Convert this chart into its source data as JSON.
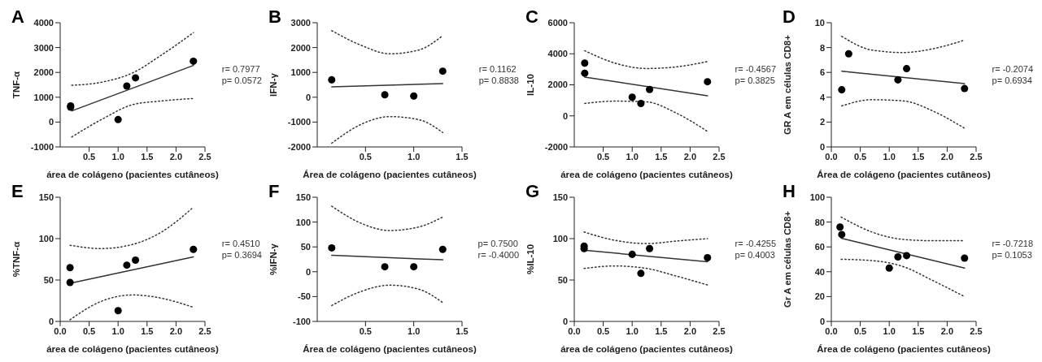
{
  "chart_data": [
    {
      "type": "scatter",
      "title": "A",
      "ylabel": "TNF-α",
      "xlabel": "área de colágeno (pacientes cutâneos)",
      "xlim": [
        0,
        2.5
      ],
      "xticks": [
        0.5,
        {
          "value": 1,
          "label": "1.0"
        },
        1.5,
        {
          "value": 2,
          "label": "2.0"
        },
        2.5
      ],
      "ylim": [
        -1000,
        4000
      ],
      "yticks": [
        -1000,
        0,
        1000,
        2000,
        3000,
        4000
      ],
      "annotations": [
        "r= 0.7977",
        "p= 0.0572"
      ],
      "series": [
        {
          "marker": "circle",
          "color": "#000000",
          "x": [
            0.18,
            0.18,
            1.0,
            1.15,
            1.3,
            2.3
          ],
          "values": [
            650,
            600,
            100,
            1450,
            1780,
            2450
          ]
        },
        {
          "type": "line",
          "line_style": "solid",
          "color": "#333333",
          "x": [
            0.2,
            2.3
          ],
          "values": [
            450,
            2280
          ]
        },
        {
          "type": "line",
          "line_style": "dotted",
          "color": "#333333",
          "x": [
            0.2,
            0.75,
            1.25,
            1.75,
            2.3
          ],
          "values": [
            1480,
            1620,
            1980,
            2700,
            3600
          ]
        },
        {
          "type": "line",
          "line_style": "dotted",
          "color": "#333333",
          "x": [
            0.2,
            0.75,
            1.25,
            1.75,
            2.3
          ],
          "values": [
            -600,
            150,
            700,
            850,
            950
          ]
        }
      ]
    },
    {
      "type": "scatter",
      "title": "B",
      "ylabel": "IFN-γ",
      "xlabel": "Área de colágeno (pacientes cutâneos)",
      "xlim": [
        0,
        1.5
      ],
      "xticks": [
        0.5,
        {
          "value": 1,
          "label": "1.0"
        },
        1.5
      ],
      "ylim": [
        -2000,
        3000
      ],
      "yticks": [
        -2000,
        -1000,
        0,
        1000,
        2000,
        3000
      ],
      "annotations": [
        "r= 0.1162",
        "p= 0.8838"
      ],
      "series": [
        {
          "marker": "circle",
          "color": "#000000",
          "x": [
            0.15,
            0.7,
            1.0,
            1.3
          ],
          "values": [
            700,
            100,
            50,
            1050
          ]
        },
        {
          "type": "line",
          "line_style": "solid",
          "color": "#333333",
          "x": [
            0.15,
            1.3
          ],
          "values": [
            420,
            550
          ]
        },
        {
          "type": "line",
          "line_style": "dotted",
          "color": "#333333",
          "x": [
            0.15,
            0.45,
            0.75,
            1.05,
            1.3
          ],
          "values": [
            2680,
            2100,
            1750,
            1900,
            2480
          ]
        },
        {
          "type": "line",
          "line_style": "dotted",
          "color": "#333333",
          "x": [
            0.15,
            0.45,
            0.75,
            1.05,
            1.3
          ],
          "values": [
            -1850,
            -1100,
            -780,
            -900,
            -1420
          ]
        }
      ]
    },
    {
      "type": "scatter",
      "title": "C",
      "ylabel": "IL-10",
      "xlabel": "área de colágeno (pacientes cutâneos)",
      "xlim": [
        0,
        2.5
      ],
      "xticks": [
        0.5,
        {
          "value": 1,
          "label": "1.0"
        },
        1.5,
        {
          "value": 2,
          "label": "2.0"
        },
        2.5
      ],
      "ylim": [
        -2000,
        6000
      ],
      "yticks": [
        -2000,
        0,
        2000,
        4000,
        6000
      ],
      "annotations": [
        "r= -0.4567",
        "p= 0.3825"
      ],
      "series": [
        {
          "marker": "circle",
          "color": "#000000",
          "x": [
            0.18,
            0.18,
            1.0,
            1.15,
            1.3,
            2.3
          ],
          "values": [
            3400,
            2750,
            1200,
            800,
            1700,
            2200
          ]
        },
        {
          "type": "line",
          "line_style": "solid",
          "color": "#333333",
          "x": [
            0.18,
            2.3
          ],
          "values": [
            2500,
            1300
          ]
        },
        {
          "type": "line",
          "line_style": "dotted",
          "color": "#333333",
          "x": [
            0.18,
            0.7,
            1.25,
            1.75,
            2.3
          ],
          "values": [
            4200,
            3400,
            3050,
            3150,
            3500
          ]
        },
        {
          "type": "line",
          "line_style": "dotted",
          "color": "#333333",
          "x": [
            0.18,
            0.7,
            1.25,
            1.75,
            2.3
          ],
          "values": [
            800,
            950,
            900,
            200,
            -1000
          ]
        }
      ]
    },
    {
      "type": "scatter",
      "title": "D",
      "ylabel": "GR A em células CD8+",
      "xlabel": "Área de colágeno (pacientes cutâneos)",
      "xlim": [
        0,
        2.5
      ],
      "xticks": [
        {
          "value": 0,
          "label": "0.0"
        },
        0.5,
        {
          "value": 1,
          "label": "1.0"
        },
        1.5,
        {
          "value": 2,
          "label": "2.0"
        },
        2.5
      ],
      "ylim": [
        0,
        10
      ],
      "yticks": [
        0,
        2,
        4,
        6,
        8,
        10
      ],
      "annotations": [
        "r= -0.2074",
        "p= 0.6934"
      ],
      "series": [
        {
          "marker": "circle",
          "color": "#000000",
          "x": [
            0.18,
            0.3,
            1.15,
            1.3,
            2.3
          ],
          "values": [
            4.6,
            7.5,
            5.4,
            6.3,
            4.7
          ]
        },
        {
          "type": "line",
          "line_style": "solid",
          "color": "#333333",
          "x": [
            0.18,
            2.3
          ],
          "values": [
            6.1,
            5.1
          ]
        },
        {
          "type": "line",
          "line_style": "dotted",
          "color": "#333333",
          "x": [
            0.18,
            0.7,
            1.25,
            1.75,
            2.3
          ],
          "values": [
            8.9,
            7.8,
            7.6,
            7.9,
            8.6
          ]
        },
        {
          "type": "line",
          "line_style": "dotted",
          "color": "#333333",
          "x": [
            0.18,
            0.7,
            1.25,
            1.75,
            2.3
          ],
          "values": [
            3.3,
            3.8,
            3.7,
            2.9,
            1.5
          ]
        }
      ]
    },
    {
      "type": "scatter",
      "title": "E",
      "ylabel": "%TNF-α",
      "xlabel": "área de colágeno (pacientes cutâneos)",
      "xlim": [
        0,
        2.5
      ],
      "xticks": [
        {
          "value": 0,
          "label": "0.0"
        },
        0.5,
        {
          "value": 1,
          "label": "1.0"
        },
        1.5,
        {
          "value": 2,
          "label": "2.0"
        },
        2.5
      ],
      "ylim": [
        0,
        150
      ],
      "yticks": [
        0,
        50,
        100,
        150
      ],
      "annotations": [
        "r= 0.4510",
        "p= 0.3694"
      ],
      "series": [
        {
          "marker": "circle",
          "color": "#000000",
          "x": [
            0.17,
            0.17,
            1.0,
            1.15,
            1.3,
            2.3
          ],
          "values": [
            65,
            47,
            13,
            68,
            74,
            87
          ]
        },
        {
          "type": "line",
          "line_style": "solid",
          "color": "#333333",
          "x": [
            0.17,
            2.3
          ],
          "values": [
            46,
            78
          ]
        },
        {
          "type": "line",
          "line_style": "dotted",
          "color": "#333333",
          "x": [
            0.17,
            0.7,
            1.25,
            1.75,
            2.3
          ],
          "values": [
            92,
            88,
            93,
            108,
            138
          ]
        },
        {
          "type": "line",
          "line_style": "dotted",
          "color": "#333333",
          "x": [
            0.17,
            0.7,
            1.25,
            1.75,
            2.3
          ],
          "values": [
            2,
            24,
            32,
            28,
            17
          ]
        }
      ]
    },
    {
      "type": "scatter",
      "title": "F",
      "ylabel": "%IFN-γ",
      "xlabel": "Área de colágeno (pacientes cutâneos)",
      "xlim": [
        0,
        1.5
      ],
      "xticks": [
        0.5,
        {
          "value": 1,
          "label": "1.0"
        },
        1.5
      ],
      "ylim": [
        -100,
        150
      ],
      "yticks": [
        -100,
        -50,
        0,
        50,
        100,
        150
      ],
      "annotations": [
        "p= 0.7500",
        "r= -0.4000"
      ],
      "series": [
        {
          "marker": "circle",
          "color": "#000000",
          "x": [
            0.15,
            0.7,
            1.0,
            1.3
          ],
          "values": [
            48,
            10,
            10,
            45
          ]
        },
        {
          "type": "line",
          "line_style": "solid",
          "color": "#333333",
          "x": [
            0.15,
            1.3
          ],
          "values": [
            33,
            24
          ]
        },
        {
          "type": "line",
          "line_style": "dotted",
          "color": "#333333",
          "x": [
            0.15,
            0.45,
            0.75,
            1.05,
            1.3
          ],
          "values": [
            132,
            98,
            83,
            90,
            110
          ]
        },
        {
          "type": "line",
          "line_style": "dotted",
          "color": "#333333",
          "x": [
            0.15,
            0.45,
            0.75,
            1.05,
            1.3
          ],
          "values": [
            -68,
            -40,
            -27,
            -35,
            -62
          ]
        }
      ]
    },
    {
      "type": "scatter",
      "title": "G",
      "ylabel": "%IL-10",
      "xlabel": "área de colágeno (pacientes cutâneos)",
      "xlim": [
        0,
        2.5
      ],
      "xticks": [
        {
          "value": 0,
          "label": "0.0"
        },
        0.5,
        {
          "value": 1,
          "label": "1.0"
        },
        1.5,
        {
          "value": 2,
          "label": "2.0"
        },
        2.5
      ],
      "ylim": [
        0,
        150
      ],
      "yticks": [
        0,
        50,
        100,
        150
      ],
      "annotations": [
        "r= -0.4255",
        "p= 0.4003"
      ],
      "series": [
        {
          "marker": "circle",
          "color": "#000000",
          "x": [
            0.17,
            0.17,
            1.0,
            1.15,
            1.3,
            2.3
          ],
          "values": [
            91,
            88,
            81,
            58,
            88,
            77
          ]
        },
        {
          "type": "line",
          "line_style": "solid",
          "color": "#333333",
          "x": [
            0.17,
            2.3
          ],
          "values": [
            86,
            72
          ]
        },
        {
          "type": "line",
          "line_style": "dotted",
          "color": "#333333",
          "x": [
            0.17,
            0.7,
            1.25,
            1.75,
            2.3
          ],
          "values": [
            108,
            98,
            94,
            97,
            100
          ]
        },
        {
          "type": "line",
          "line_style": "dotted",
          "color": "#333333",
          "x": [
            0.17,
            0.7,
            1.25,
            1.75,
            2.3
          ],
          "values": [
            64,
            67,
            64,
            55,
            44
          ]
        }
      ]
    },
    {
      "type": "scatter",
      "title": "H",
      "ylabel": "Gr A em células CD8+",
      "xlabel": "Área de colágeno (pacientes cutâneos)",
      "xlim": [
        0,
        2.5
      ],
      "xticks": [
        {
          "value": 0,
          "label": "0.0"
        },
        0.5,
        {
          "value": 1,
          "label": "1.0"
        },
        1.5,
        {
          "value": 2,
          "label": "2.0"
        },
        2.5
      ],
      "ylim": [
        0,
        100
      ],
      "yticks": [
        0,
        20,
        40,
        60,
        80,
        100
      ],
      "annotations": [
        "r= -0.7218",
        "p= 0.1053"
      ],
      "series": [
        {
          "marker": "circle",
          "color": "#000000",
          "x": [
            0.15,
            0.18,
            1.0,
            1.15,
            1.3,
            2.3
          ],
          "values": [
            76,
            70,
            43,
            52,
            53,
            51
          ]
        },
        {
          "type": "line",
          "line_style": "solid",
          "color": "#333333",
          "x": [
            0.17,
            2.3
          ],
          "values": [
            67,
            43
          ]
        },
        {
          "type": "line",
          "line_style": "dotted",
          "color": "#333333",
          "x": [
            0.17,
            0.7,
            1.25,
            1.75,
            2.3
          ],
          "values": [
            84,
            72,
            66,
            65,
            65
          ]
        },
        {
          "type": "line",
          "line_style": "dotted",
          "color": "#333333",
          "x": [
            0.17,
            0.7,
            1.25,
            1.75,
            2.3
          ],
          "values": [
            50,
            49,
            44,
            33,
            20
          ]
        }
      ]
    }
  ]
}
